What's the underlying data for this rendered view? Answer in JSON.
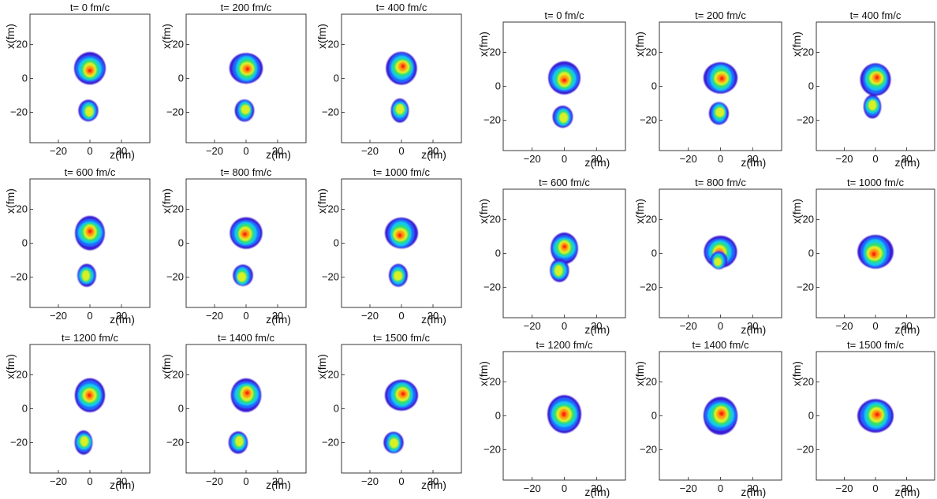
{
  "figure": {
    "colorscale": [
      "#3a1fd6",
      "#1f6bff",
      "#13c8e8",
      "#2fe06a",
      "#d9f022",
      "#ff9a12",
      "#ff2a10"
    ],
    "panel_groups": [
      {
        "group": "left",
        "panels": [
          {
            "title": "t= 0 fm/c"
          },
          {
            "title": "t= 200 fm/c"
          },
          {
            "title": "t= 400 fm/c"
          },
          {
            "title": "t= 600 fm/c"
          },
          {
            "title": "t= 800 fm/c"
          },
          {
            "title": "t= 1000 fm/c"
          },
          {
            "title": "t= 1200 fm/c"
          },
          {
            "title": "t= 1400 fm/c"
          },
          {
            "title": "t= 1500 fm/c"
          }
        ]
      },
      {
        "group": "right",
        "panels": [
          {
            "title": "t= 0 fm/c"
          },
          {
            "title": "t= 200 fm/c"
          },
          {
            "title": "t= 400 fm/c"
          },
          {
            "title": "t= 600 fm/c"
          },
          {
            "title": "t= 800 fm/c"
          },
          {
            "title": "t= 1000 fm/c"
          },
          {
            "title": "t= 1200 fm/c"
          },
          {
            "title": "t= 1400 fm/c"
          },
          {
            "title": "t= 1500 fm/c"
          }
        ]
      }
    ]
  },
  "chart_data": {
    "type": "heatmap",
    "xlabel": "z(fm)",
    "ylabel": "x(fm)",
    "xlim": [
      -38,
      38
    ],
    "ylim": [
      -38,
      38
    ],
    "xticks": [
      -20,
      0,
      20
    ],
    "yticks": [
      -20,
      0,
      20
    ],
    "xtick_labels": [
      "−20",
      "0",
      "20"
    ],
    "ytick_labels": [
      "−20",
      "0",
      "20"
    ],
    "groups": [
      {
        "group": "left",
        "panels": [
          {
            "t": 0,
            "blobs": [
              {
                "z": 0,
                "x": 6,
                "r": 10
              },
              {
                "z": -1,
                "x": -19,
                "r": 6
              }
            ]
          },
          {
            "t": 200,
            "blobs": [
              {
                "z": 0,
                "x": 6,
                "r": 10
              },
              {
                "z": -1,
                "x": -19,
                "r": 6
              }
            ]
          },
          {
            "t": 400,
            "blobs": [
              {
                "z": 0,
                "x": 6,
                "r": 10
              },
              {
                "z": -1,
                "x": -19,
                "r": 6
              }
            ]
          },
          {
            "t": 600,
            "blobs": [
              {
                "z": 0,
                "x": 6,
                "r": 10
              },
              {
                "z": -2,
                "x": -19,
                "r": 6
              }
            ]
          },
          {
            "t": 800,
            "blobs": [
              {
                "z": 0,
                "x": 6,
                "r": 10
              },
              {
                "z": -2,
                "x": -19,
                "r": 6
              }
            ]
          },
          {
            "t": 1000,
            "blobs": [
              {
                "z": 0,
                "x": 6,
                "r": 10
              },
              {
                "z": -2,
                "x": -19,
                "r": 6
              }
            ]
          },
          {
            "t": 1200,
            "blobs": [
              {
                "z": 0,
                "x": 8,
                "r": 10
              },
              {
                "z": -4,
                "x": -20,
                "r": 6
              }
            ]
          },
          {
            "t": 1400,
            "blobs": [
              {
                "z": 0,
                "x": 8,
                "r": 10
              },
              {
                "z": -5,
                "x": -20,
                "r": 6
              }
            ]
          },
          {
            "t": 1500,
            "blobs": [
              {
                "z": 0,
                "x": 8,
                "r": 10
              },
              {
                "z": -5,
                "x": -20,
                "r": 6
              }
            ]
          }
        ]
      },
      {
        "group": "right",
        "panels": [
          {
            "t": 0,
            "blobs": [
              {
                "z": 0,
                "x": 5,
                "r": 10
              },
              {
                "z": -1,
                "x": -18,
                "r": 6
              }
            ]
          },
          {
            "t": 200,
            "blobs": [
              {
                "z": 0,
                "x": 5,
                "r": 10
              },
              {
                "z": -1,
                "x": -16,
                "r": 6
              }
            ]
          },
          {
            "t": 400,
            "blobs": [
              {
                "z": 0,
                "x": 4,
                "r": 10
              },
              {
                "z": -2,
                "x": -12,
                "r": 6
              }
            ]
          },
          {
            "t": 600,
            "blobs": [
              {
                "z": 0,
                "x": 3,
                "r": 9
              },
              {
                "z": -3,
                "x": -10,
                "r": 6
              }
            ]
          },
          {
            "t": 800,
            "blobs": [
              {
                "z": 0,
                "x": 1,
                "r": 10
              },
              {
                "z": -1,
                "x": -4,
                "r": 5
              }
            ]
          },
          {
            "t": 1000,
            "blobs": [
              {
                "z": 0,
                "x": 1,
                "r": 11
              }
            ]
          },
          {
            "t": 1200,
            "blobs": [
              {
                "z": 0,
                "x": 1,
                "r": 11
              }
            ]
          },
          {
            "t": 1400,
            "blobs": [
              {
                "z": 0,
                "x": 0,
                "r": 11
              }
            ]
          },
          {
            "t": 1500,
            "blobs": [
              {
                "z": 0,
                "x": 0,
                "r": 11
              }
            ]
          }
        ]
      }
    ]
  }
}
